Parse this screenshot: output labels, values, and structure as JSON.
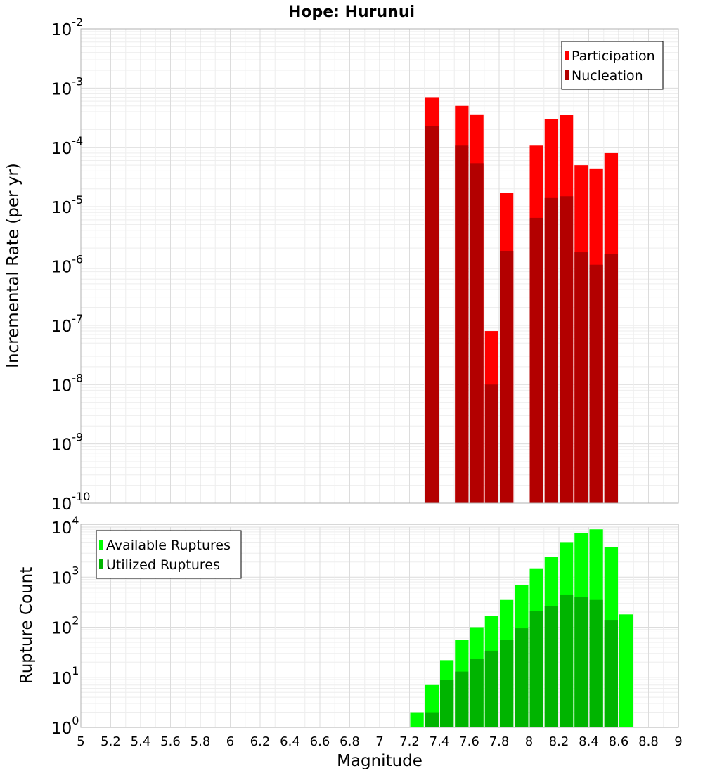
{
  "chart_data": [
    {
      "type": "bar",
      "title": "Hope: Hurunui",
      "ylabel": "Incremental Rate (per yr)",
      "yscale": "log",
      "ylim_exp": [
        -10,
        -2
      ],
      "x": [
        7.3,
        7.5,
        7.6,
        7.7,
        7.8,
        8.0,
        8.1,
        8.2,
        8.3,
        8.4,
        8.5
      ],
      "series": [
        {
          "name": "Participation",
          "color": "#ff0000",
          "values": [
            0.0007,
            0.0005,
            0.00036,
            8e-08,
            1.7e-05,
            0.000107,
            0.0003,
            0.00035,
            5e-05,
            4.4e-05,
            8e-05
          ]
        },
        {
          "name": "Nucleation",
          "color": "#b30000",
          "values": [
            0.00023,
            0.000107,
            5.4e-05,
            1e-08,
            1.8e-06,
            6.5e-06,
            1.4e-05,
            1.5e-05,
            1.7e-06,
            1.05e-06,
            1.6e-06
          ]
        }
      ],
      "legend_position": "top-right",
      "grid": true
    },
    {
      "type": "bar",
      "ylabel": "Rupture Count",
      "xlabel": "Magnitude",
      "yscale": "log",
      "ylim_exp": [
        0,
        4
      ],
      "xlim": [
        5,
        9
      ],
      "x_ticks": [
        "5",
        "5.2",
        "5.4",
        "5.6",
        "5.8",
        "6",
        "6.2",
        "6.4",
        "6.6",
        "6.8",
        "7",
        "7.2",
        "7.4",
        "7.6",
        "7.8",
        "8",
        "8.2",
        "8.4",
        "8.6",
        "8.8",
        "9"
      ],
      "x": [
        6.8,
        7.2,
        7.3,
        7.4,
        7.5,
        7.6,
        7.7,
        7.8,
        7.9,
        8.0,
        8.1,
        8.2,
        8.3,
        8.4,
        8.5,
        8.6
      ],
      "series": [
        {
          "name": "Available Ruptures",
          "color": "#00ff00",
          "values": [
            1,
            2,
            7,
            22,
            55,
            100,
            170,
            350,
            700,
            1500,
            2500,
            5000,
            7500,
            9000,
            4000,
            180
          ]
        },
        {
          "name": "Utilized Ruptures",
          "color": "#00b400",
          "values": [
            0,
            1,
            2,
            9,
            13,
            23,
            34,
            55,
            95,
            210,
            260,
            450,
            400,
            350,
            140,
            1
          ]
        }
      ],
      "legend_position": "top-left",
      "grid": true
    }
  ]
}
